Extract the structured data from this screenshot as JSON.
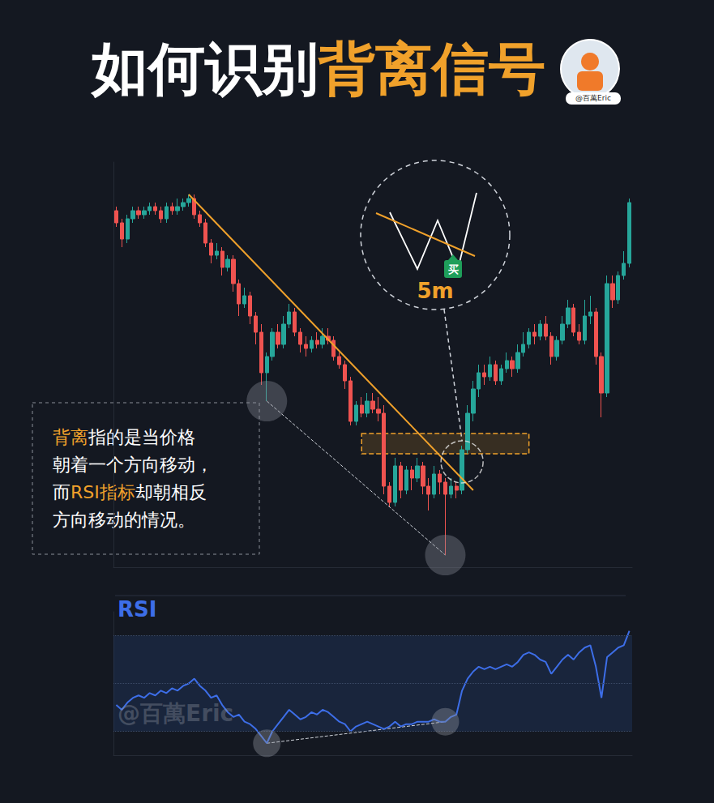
{
  "title": [
    {
      "text": "如何识别",
      "color": "#ffffff"
    },
    {
      "text": "背离信号",
      "color": "#f0a12b"
    }
  ],
  "badge": "@百萬Eric",
  "watermark": "@百萬Eric",
  "note": [
    [
      {
        "text": "背离",
        "color": "#f0a12b"
      },
      {
        "text": "指的是当价格",
        "color": "#ffffff"
      }
    ],
    [
      {
        "text": "朝着一个方向移动，",
        "color": "#ffffff"
      }
    ],
    [
      {
        "text": "而",
        "color": "#ffffff"
      },
      {
        "text": "RSI指标",
        "color": "#f0a12b"
      },
      {
        "text": "却朝相反",
        "color": "#ffffff"
      }
    ],
    [
      {
        "text": "方向移动的情况。",
        "color": "#ffffff"
      }
    ]
  ],
  "inset": {
    "timeframe": "5m",
    "signal": "买"
  },
  "chart_data": [
    {
      "type": "candlestick",
      "categories": [
        null,
        null,
        null,
        null,
        null,
        null,
        null,
        null,
        null,
        null,
        null,
        null,
        null,
        null,
        null,
        null,
        null,
        null,
        null,
        null,
        null,
        null,
        null,
        null,
        null,
        null,
        null,
        null,
        null,
        null,
        null,
        null,
        null,
        null,
        null,
        null,
        null,
        null,
        null,
        null,
        null,
        null,
        null,
        null,
        null,
        null,
        null,
        null,
        null,
        null,
        null,
        null,
        null,
        null,
        null,
        null,
        null,
        null,
        null,
        null,
        null,
        null,
        null,
        null,
        null,
        null,
        null,
        null,
        null,
        null,
        null,
        null,
        null,
        null,
        null,
        null,
        null,
        null,
        null,
        null,
        null,
        null,
        null,
        null,
        null,
        null,
        null,
        null,
        null,
        null,
        null,
        null,
        null
      ],
      "open": [
        88,
        85,
        81,
        86,
        88,
        87,
        88,
        89,
        88,
        86,
        89,
        88,
        89,
        90,
        91,
        87,
        85,
        80,
        77,
        78,
        74,
        76,
        70,
        65,
        67,
        62,
        58,
        48,
        52,
        58,
        55,
        60,
        63,
        58,
        55,
        54,
        56,
        55,
        57,
        56,
        52,
        50,
        46,
        36,
        40,
        38,
        41,
        39,
        38,
        20,
        16,
        25,
        19,
        24,
        22,
        25,
        20,
        18,
        23,
        21,
        18,
        20,
        19,
        29,
        38,
        44,
        48,
        47,
        50,
        46,
        49,
        51,
        49,
        53,
        55,
        58,
        57,
        60,
        57,
        52,
        56,
        60,
        64,
        58,
        56,
        62,
        63,
        52,
        43,
        70,
        66,
        72,
        75
      ],
      "high": [
        89,
        86,
        87,
        89,
        89,
        89,
        90,
        90,
        89,
        90,
        90,
        91,
        91,
        92,
        92,
        88,
        86,
        81,
        80,
        79,
        77,
        77,
        71,
        69,
        68,
        63,
        60,
        53,
        59,
        60,
        62,
        65,
        64,
        59,
        57,
        57,
        58,
        59,
        59,
        57,
        53,
        51,
        47,
        41,
        42,
        43,
        43,
        42,
        40,
        21,
        27,
        26,
        25,
        25,
        27,
        26,
        22,
        25,
        24,
        22,
        22,
        21,
        30,
        40,
        46,
        50,
        50,
        52,
        51,
        50,
        53,
        52,
        55,
        58,
        59,
        60,
        61,
        62,
        58,
        57,
        62,
        66,
        65,
        60,
        66,
        67,
        64,
        53,
        72,
        72,
        73,
        78,
        91
      ],
      "low": [
        84,
        79,
        80,
        85,
        86,
        86,
        87,
        87,
        85,
        85,
        87,
        87,
        88,
        89,
        86,
        84,
        79,
        75,
        76,
        72,
        73,
        68,
        62,
        64,
        60,
        55,
        45,
        41,
        51,
        54,
        54,
        59,
        57,
        53,
        52,
        53,
        54,
        54,
        55,
        51,
        49,
        44,
        35,
        35,
        37,
        37,
        38,
        36,
        18,
        15,
        15,
        17,
        18,
        19,
        21,
        18,
        14,
        17,
        18,
        3,
        17,
        17,
        18,
        28,
        36,
        42,
        45,
        46,
        45,
        45,
        48,
        47,
        48,
        52,
        54,
        55,
        56,
        56,
        50,
        51,
        55,
        59,
        57,
        55,
        55,
        60,
        50,
        37,
        42,
        64,
        65,
        71,
        74
      ],
      "close": [
        85,
        81,
        86,
        88,
        87,
        88,
        89,
        88,
        86,
        89,
        88,
        89,
        90,
        91,
        87,
        85,
        80,
        77,
        78,
        74,
        76,
        70,
        65,
        67,
        62,
        58,
        48,
        52,
        58,
        55,
        60,
        63,
        58,
        55,
        54,
        56,
        55,
        57,
        56,
        52,
        50,
        46,
        36,
        40,
        38,
        41,
        39,
        38,
        20,
        16,
        25,
        19,
        24,
        22,
        25,
        20,
        18,
        23,
        21,
        18,
        20,
        19,
        29,
        38,
        44,
        48,
        47,
        50,
        46,
        49,
        51,
        49,
        53,
        55,
        58,
        57,
        60,
        57,
        52,
        56,
        60,
        64,
        58,
        56,
        62,
        63,
        52,
        43,
        70,
        66,
        72,
        75,
        90
      ],
      "ylim": [
        0,
        100
      ],
      "grid": false,
      "tick_labels": false,
      "trendline": {
        "x": [
          13,
          64
        ],
        "y": [
          92,
          19
        ]
      },
      "divergence": {
        "x": [
          27,
          59
        ],
        "y": [
          41,
          3
        ]
      },
      "zone": {
        "x": [
          44,
          74
        ],
        "y": [
          28,
          33
        ]
      },
      "breakout": {
        "x": 62,
        "y": 26
      }
    },
    {
      "type": "line",
      "title": "RSI",
      "categories": [
        null,
        null,
        null,
        null,
        null,
        null,
        null,
        null,
        null,
        null,
        null,
        null,
        null,
        null,
        null,
        null,
        null,
        null,
        null,
        null,
        null,
        null,
        null,
        null,
        null,
        null,
        null,
        null,
        null,
        null,
        null,
        null,
        null,
        null,
        null,
        null,
        null,
        null,
        null,
        null,
        null,
        null,
        null,
        null,
        null,
        null,
        null,
        null,
        null,
        null,
        null,
        null,
        null,
        null,
        null,
        null,
        null,
        null,
        null,
        null,
        null,
        null,
        null,
        null,
        null,
        null,
        null,
        null,
        null,
        null,
        null,
        null,
        null,
        null,
        null,
        null,
        null,
        null,
        null,
        null,
        null,
        null,
        null,
        null,
        null,
        null,
        null,
        null,
        null,
        null,
        null,
        null,
        null
      ],
      "values": [
        41,
        39,
        42,
        44,
        45,
        44,
        46,
        45,
        47,
        46,
        48,
        47,
        49,
        50,
        52,
        49,
        47,
        44,
        45,
        41,
        38,
        36,
        37,
        34,
        33,
        31,
        28,
        25,
        30,
        33,
        36,
        39,
        37,
        35,
        36,
        38,
        37,
        39,
        38,
        36,
        34,
        33,
        30,
        32,
        33,
        34,
        33,
        32,
        31,
        32,
        34,
        32,
        33,
        33,
        34,
        34,
        34,
        35,
        34,
        34,
        36,
        37,
        47,
        52,
        55,
        57,
        56,
        57,
        56,
        57,
        58,
        57,
        59,
        62,
        63,
        62,
        60,
        59,
        54,
        57,
        60,
        62,
        60,
        63,
        65,
        66,
        57,
        44,
        61,
        63,
        65,
        66,
        72
      ],
      "ylim": [
        20,
        80
      ],
      "yticks": [
        30,
        50,
        70
      ],
      "grid": true,
      "tick_labels": false,
      "band": [
        30,
        70
      ],
      "divergence": {
        "x": [
          27,
          59
        ],
        "y": [
          25,
          34
        ]
      }
    }
  ]
}
